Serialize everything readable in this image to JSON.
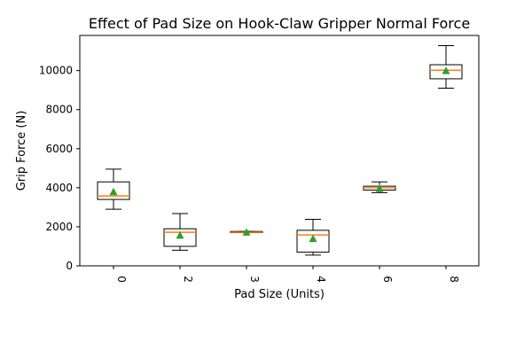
{
  "chart_data": {
    "type": "box",
    "title": "Effect of Pad Size on Hook-Claw Gripper Normal Force",
    "xlabel": "Pad Size (Units)",
    "ylabel": "Grip Force (N)",
    "categories": [
      "0",
      "2",
      "3",
      "4",
      "6",
      "8"
    ],
    "ylim": [
      0,
      11800
    ],
    "yticks": [
      0,
      2000,
      4000,
      6000,
      8000,
      10000
    ],
    "ytick_labels": [
      "0",
      "2000",
      "4000",
      "6000",
      "8000",
      "10000"
    ],
    "xtick_rotation": "vertical",
    "grid": false,
    "boxes": [
      {
        "category": "0",
        "whisker_low": 2900,
        "q1": 3400,
        "median": 3580,
        "q3": 4300,
        "whisker_high": 4950,
        "mean": 3800
      },
      {
        "category": "2",
        "whisker_low": 800,
        "q1": 1000,
        "median": 1720,
        "q3": 1900,
        "whisker_high": 2680,
        "mean": 1570
      },
      {
        "category": "3",
        "whisker_low": 1700,
        "q1": 1700,
        "median": 1720,
        "q3": 1760,
        "whisker_high": 1760,
        "mean": 1730
      },
      {
        "category": "4",
        "whisker_low": 550,
        "q1": 700,
        "median": 1580,
        "q3": 1820,
        "whisker_high": 2380,
        "mean": 1400
      },
      {
        "category": "6",
        "whisker_low": 3750,
        "q1": 3880,
        "median": 4000,
        "q3": 4080,
        "whisker_high": 4300,
        "mean": 3970
      },
      {
        "category": "8",
        "whisker_low": 9100,
        "q1": 9580,
        "median": 10020,
        "q3": 10300,
        "whisker_high": 11280,
        "mean": 10000
      }
    ],
    "colors": {
      "box": "#000000",
      "median": "#ff7f0e",
      "mean_marker": "#2ca02c"
    }
  }
}
